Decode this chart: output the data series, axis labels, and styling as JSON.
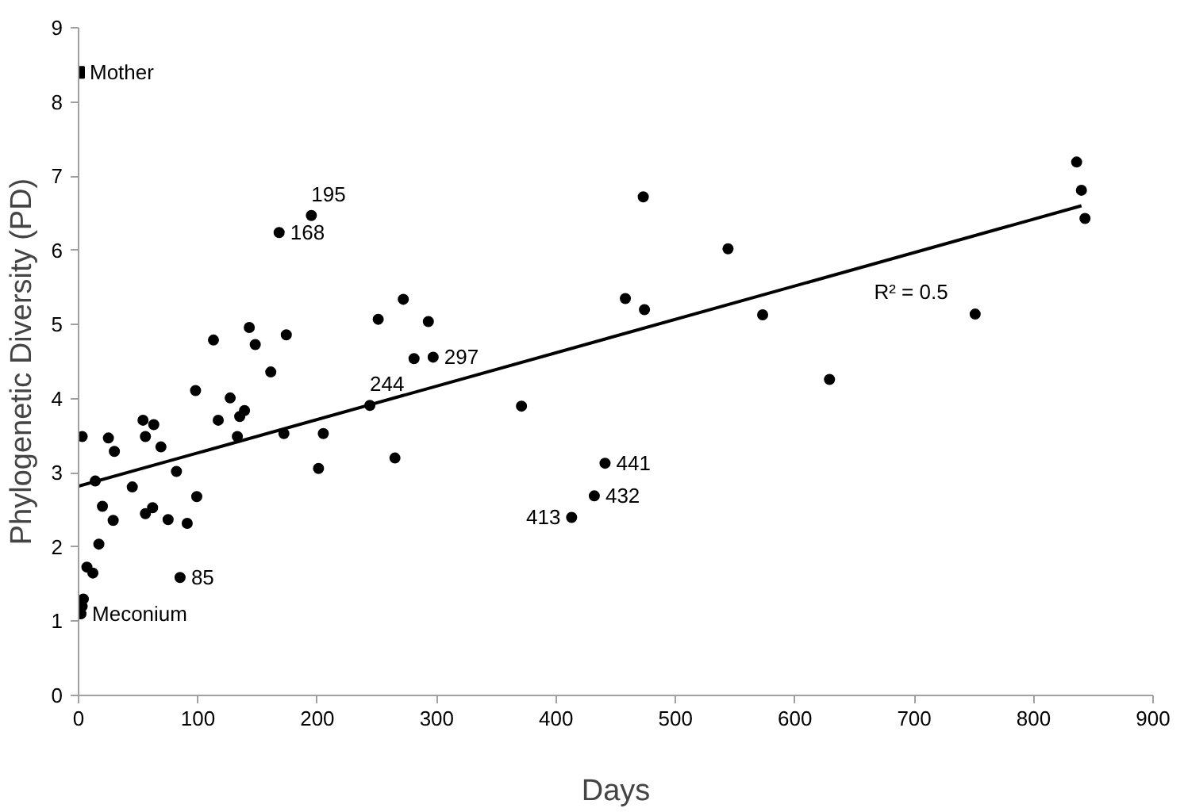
{
  "chart_data": {
    "type": "scatter",
    "xlabel": "Days",
    "ylabel": "Phylogenetic Diversity (PD)",
    "xlim": [
      0,
      900
    ],
    "xticks": [
      0,
      100,
      200,
      300,
      400,
      500,
      600,
      700,
      800,
      900
    ],
    "ylim": [
      0,
      9
    ],
    "yticks": [
      0,
      1,
      2,
      3,
      4,
      5,
      6,
      7,
      8,
      9
    ],
    "grid": false,
    "series": [
      {
        "marker": "square",
        "color": "#000000",
        "x": [
          0
        ],
        "values": [
          8.4
        ]
      },
      {
        "marker": "circle",
        "color": "#000000",
        "x": [
          2,
          3,
          4,
          3,
          7,
          12,
          14,
          17,
          20,
          25,
          29,
          30,
          45,
          54,
          56,
          56,
          62,
          63,
          69,
          75,
          82,
          85,
          91,
          98,
          99,
          113,
          117,
          127,
          133,
          135,
          139,
          143,
          148,
          161,
          168,
          172,
          174,
          195,
          201,
          205,
          244,
          251,
          265,
          272,
          281,
          293,
          297,
          371,
          413,
          432,
          441,
          458,
          473,
          474,
          544,
          573,
          629,
          751,
          836,
          840,
          843
        ],
        "values": [
          1.1,
          1.2,
          1.3,
          3.49,
          1.73,
          1.65,
          2.89,
          2.04,
          2.55,
          3.47,
          2.36,
          3.29,
          2.81,
          3.71,
          3.49,
          2.45,
          2.53,
          3.65,
          3.35,
          2.37,
          3.02,
          1.59,
          2.32,
          4.11,
          2.68,
          4.79,
          3.71,
          4.01,
          3.49,
          3.76,
          3.84,
          4.96,
          4.73,
          4.36,
          6.24,
          3.53,
          4.86,
          6.47,
          3.06,
          3.53,
          3.91,
          5.07,
          3.2,
          5.34,
          4.54,
          5.04,
          4.56,
          3.9,
          2.4,
          2.69,
          3.13,
          5.35,
          6.72,
          5.2,
          6.02,
          5.13,
          4.26,
          5.14,
          7.19,
          6.81,
          6.43
        ]
      },
      {
        "type": "line",
        "color": "#000000",
        "x": [
          0,
          840
        ],
        "values": [
          2.82,
          6.6
        ]
      }
    ],
    "annotations": [
      {
        "text": "Mother",
        "x": 0,
        "y": 8.4
      },
      {
        "text": "Meconium",
        "x": 2,
        "y": 1.1
      },
      {
        "text": "85",
        "x": 85,
        "y": 1.59
      },
      {
        "text": "168",
        "x": 168,
        "y": 6.24
      },
      {
        "text": "195",
        "x": 195,
        "y": 6.47
      },
      {
        "text": "244",
        "x": 244,
        "y": 3.91
      },
      {
        "text": "297",
        "x": 297,
        "y": 4.56
      },
      {
        "text": "441",
        "x": 441,
        "y": 3.13
      },
      {
        "text": "432",
        "x": 432,
        "y": 2.69
      },
      {
        "text": "413",
        "x": 413,
        "y": 2.4
      },
      {
        "text": "R² = 0.5",
        "x": 661,
        "y": 5.79
      }
    ]
  }
}
